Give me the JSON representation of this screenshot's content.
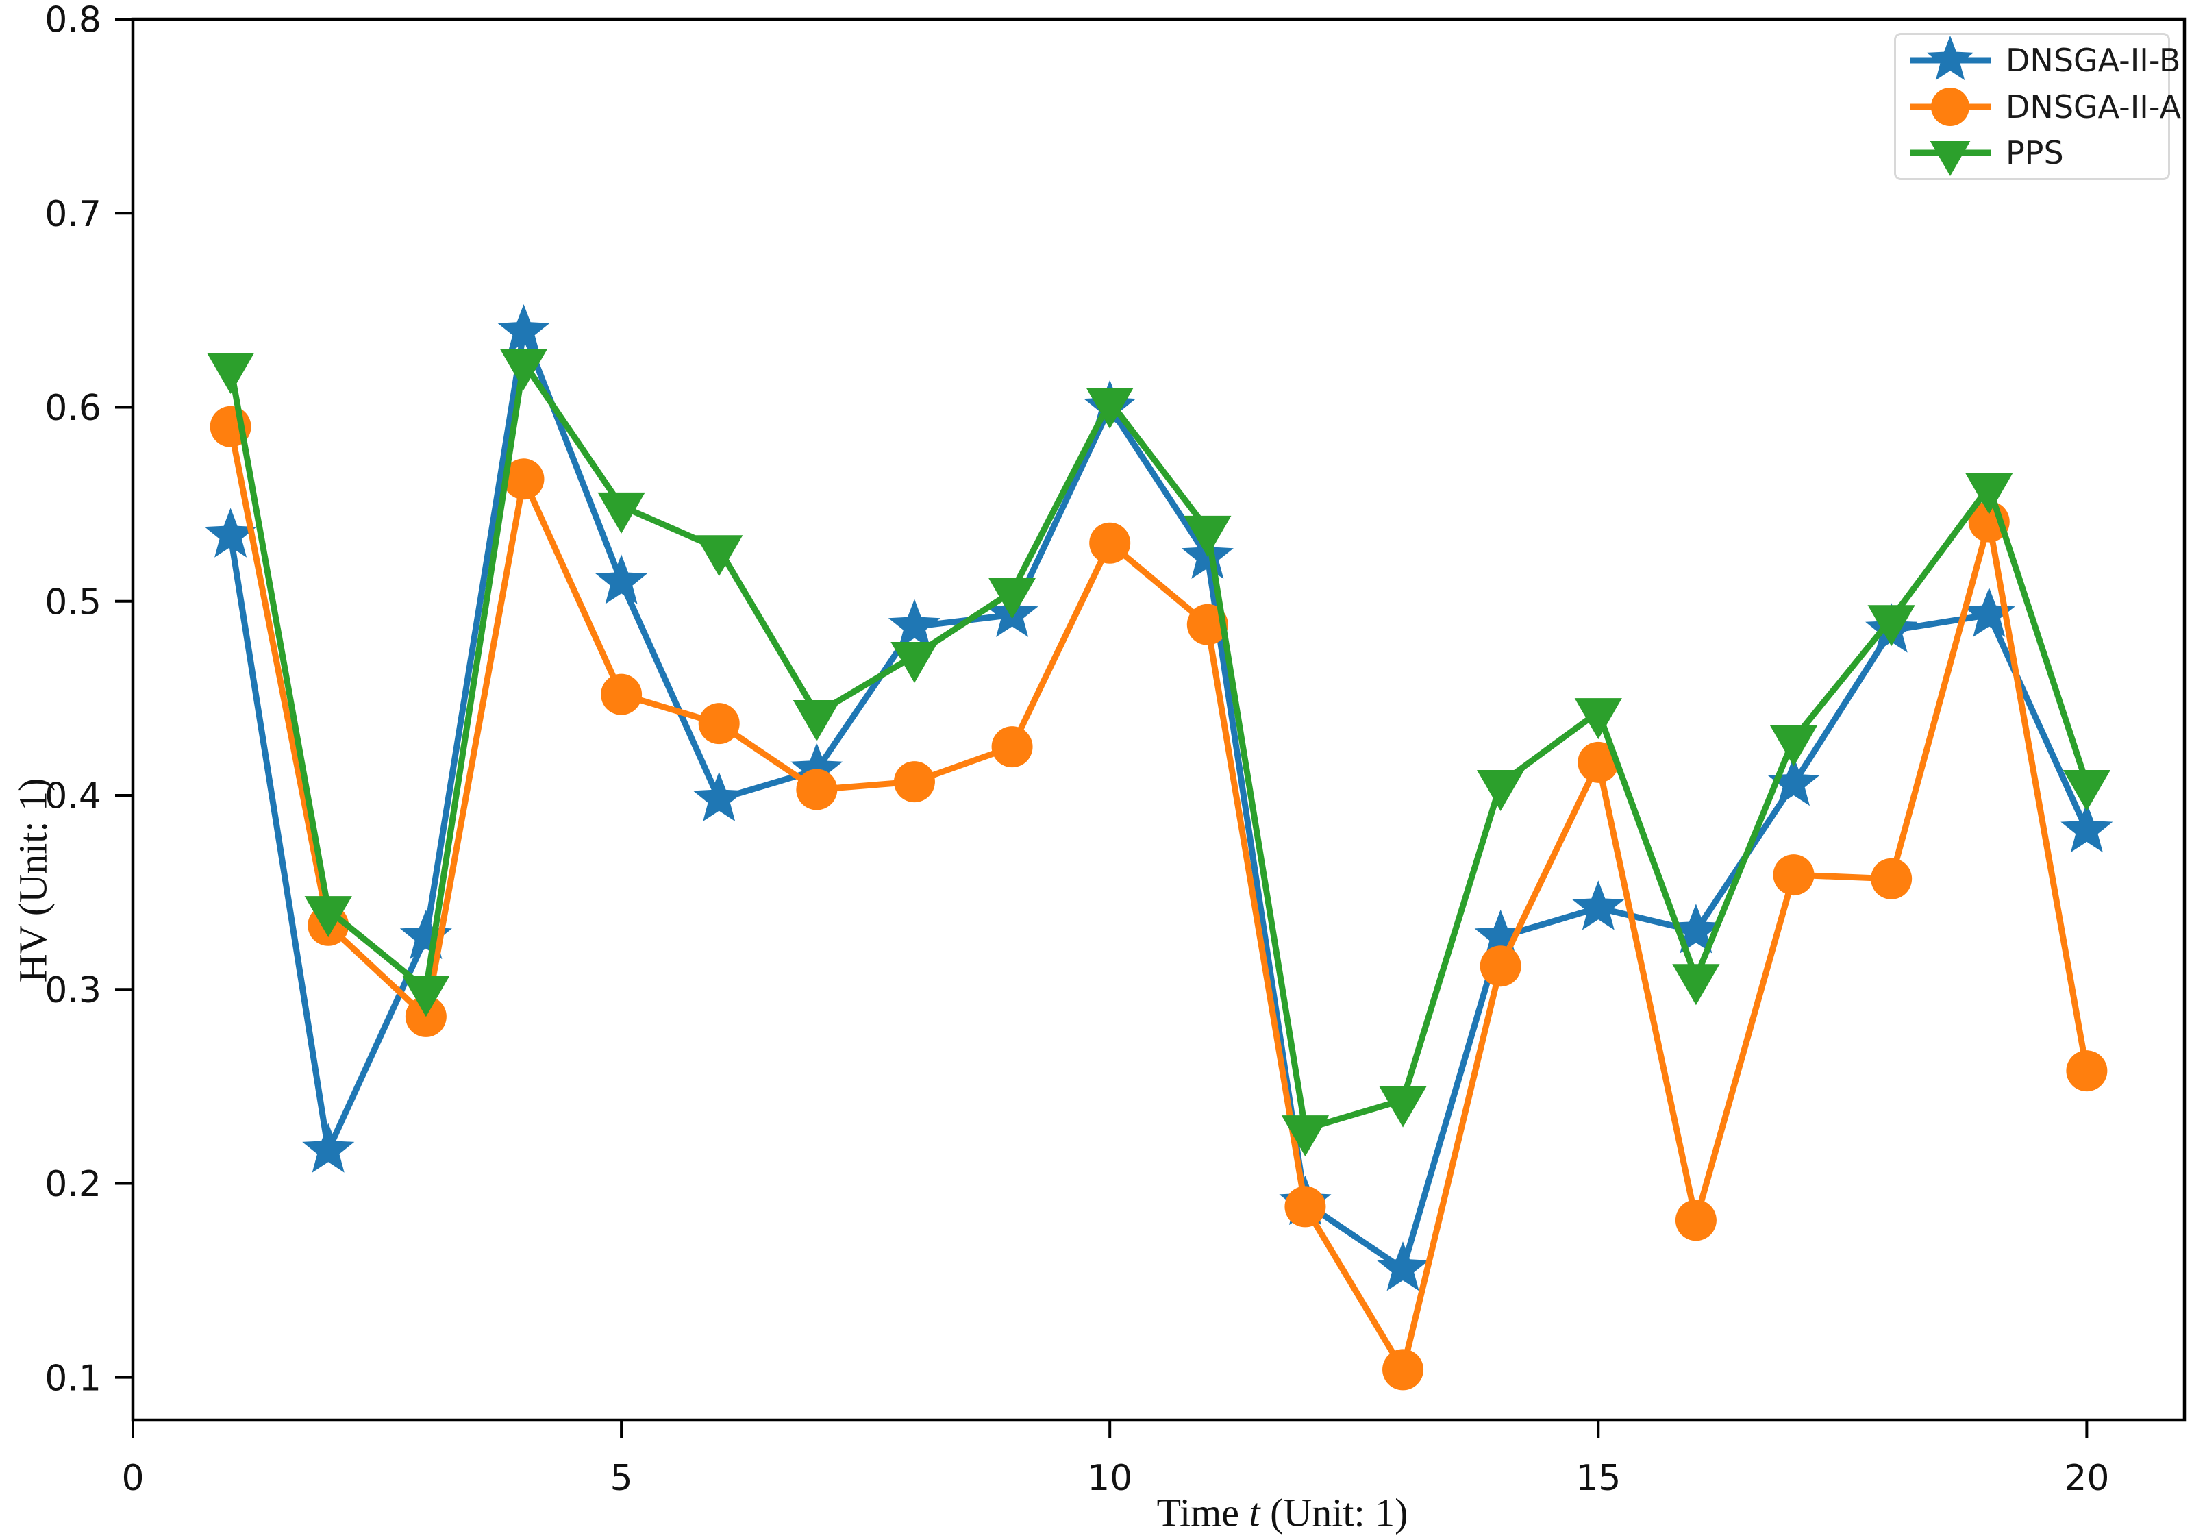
{
  "figure": {
    "background": "#ffffff",
    "text_color": "#111111",
    "frame_color": "#000000"
  },
  "chart_data": {
    "type": "line",
    "title": "",
    "xlabel_prefix": "Time ",
    "xlabel_var": "t",
    "xlabel_suffix": " (Unit: 1)",
    "ylabel": "HV (Unit: 1)",
    "x": [
      1,
      2,
      3,
      4,
      5,
      6,
      7,
      8,
      9,
      10,
      11,
      12,
      13,
      14,
      15,
      16,
      17,
      18,
      19,
      20
    ],
    "series": [
      {
        "name": "DNSGA-II-B",
        "color": "#1f77b4",
        "marker": "star",
        "values": [
          0.534,
          0.217,
          0.327,
          0.639,
          0.51,
          0.398,
          0.413,
          0.487,
          0.493,
          0.6,
          0.523,
          0.19,
          0.156,
          0.327,
          0.342,
          0.33,
          0.406,
          0.485,
          0.493,
          0.382
        ]
      },
      {
        "name": "DNSGA-II-A",
        "color": "#ff7f0e",
        "marker": "circle",
        "values": [
          0.59,
          0.333,
          0.286,
          0.563,
          0.452,
          0.437,
          0.403,
          0.407,
          0.425,
          0.53,
          0.488,
          0.188,
          0.104,
          0.312,
          0.417,
          0.181,
          0.359,
          0.357,
          0.541,
          0.258
        ]
      },
      {
        "name": "PPS",
        "color": "#2ca02c",
        "marker": "triangle-down",
        "values": [
          0.621,
          0.341,
          0.3,
          0.623,
          0.549,
          0.527,
          0.442,
          0.472,
          0.505,
          0.603,
          0.537,
          0.228,
          0.243,
          0.406,
          0.443,
          0.306,
          0.429,
          0.491,
          0.559,
          0.406
        ]
      }
    ],
    "xticks": {
      "values": [
        0,
        5,
        10,
        15,
        20
      ],
      "labels": [
        "0",
        "5",
        "10",
        "15",
        "20"
      ]
    },
    "yticks": {
      "values": [
        0.1,
        0.2,
        0.3,
        0.4,
        0.5,
        0.6,
        0.7,
        0.8
      ],
      "labels": [
        "0.1",
        "0.2",
        "0.3",
        "0.4",
        "0.5",
        "0.6",
        "0.7",
        "0.8"
      ]
    },
    "xlim": [
      0,
      21
    ],
    "ylim": [
      0.078,
      0.8
    ],
    "grid": false,
    "legend": {
      "position": "upper right"
    }
  }
}
